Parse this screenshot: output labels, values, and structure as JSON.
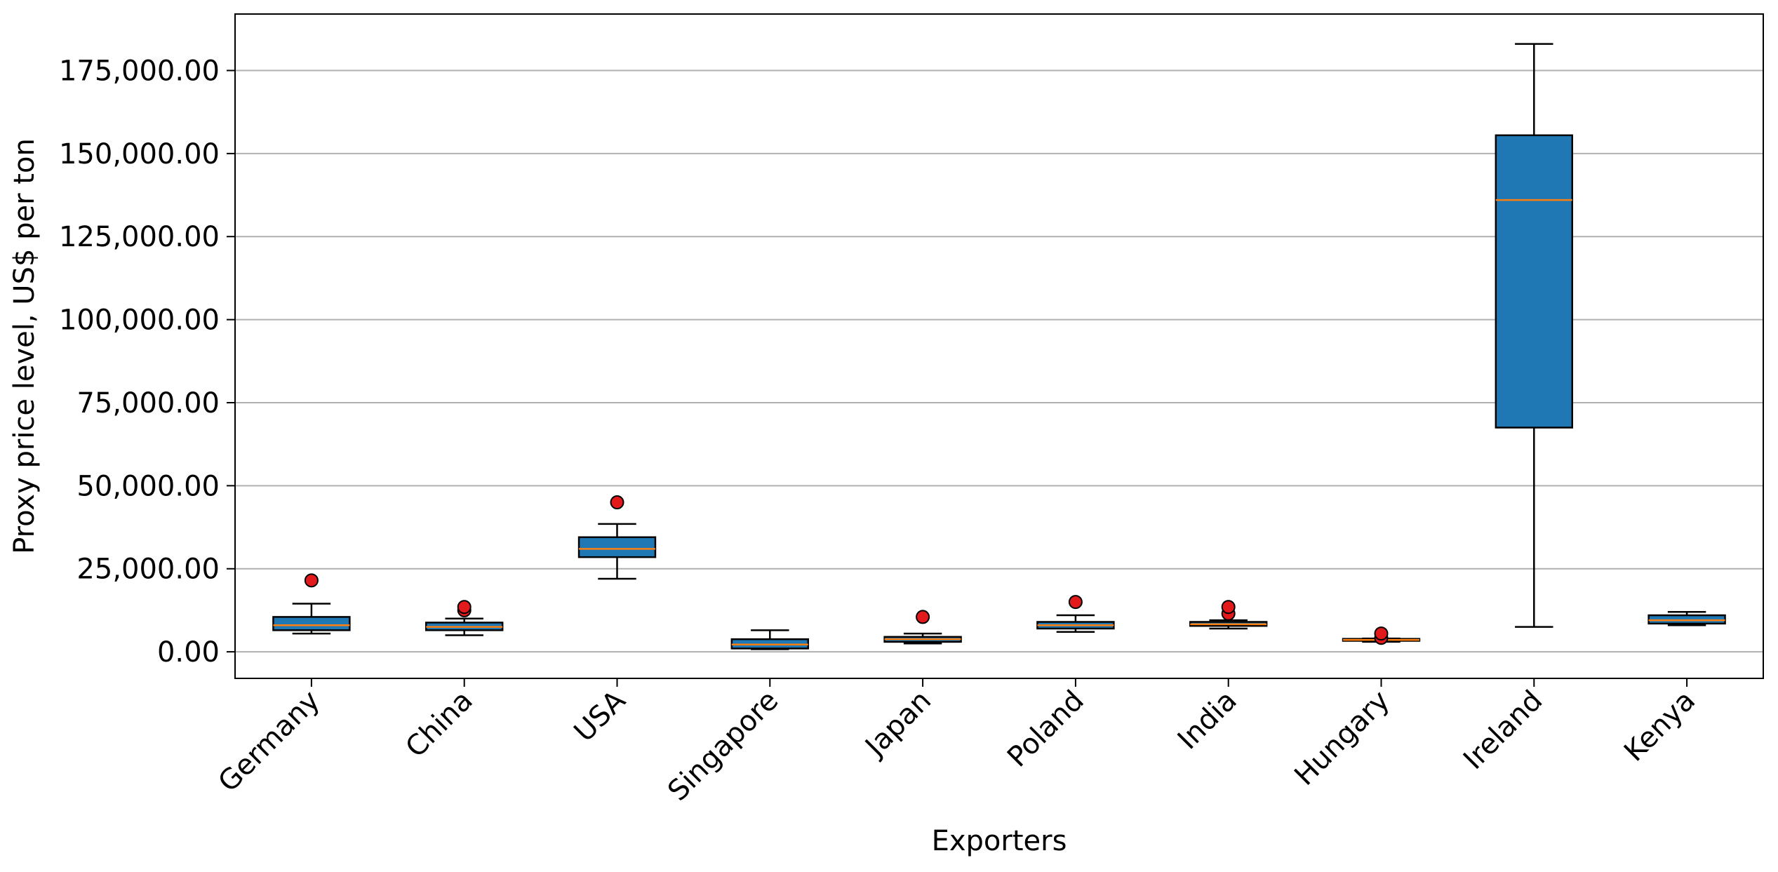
{
  "chart_data": {
    "type": "box",
    "title": "",
    "xlabel": "Exporters",
    "ylabel": "Proxy price level, US$ per ton",
    "ylim": [
      -8000,
      192000
    ],
    "yticks": [
      0,
      25000,
      50000,
      75000,
      100000,
      125000,
      150000,
      175000
    ],
    "ytick_labels": [
      "0.00",
      "25,000.00",
      "50,000.00",
      "75,000.00",
      "100,000.00",
      "125,000.00",
      "150,000.00",
      "175,000.00"
    ],
    "grid": "horizontal",
    "colors": {
      "box_fill": "#1f77b4",
      "median": "#ff7f0e",
      "outlier": "#e31a1c",
      "grid": "#b0b0b0"
    },
    "categories": [
      "Germany",
      "China",
      "USA",
      "Singapore",
      "Japan",
      "Poland",
      "India",
      "Hungary",
      "Ireland",
      "Kenya"
    ],
    "boxes": [
      {
        "label": "Germany",
        "whisker_low": 5500,
        "q1": 6500,
        "median": 8000,
        "q3": 10500,
        "whisker_high": 14500,
        "outliers": [
          21500
        ]
      },
      {
        "label": "China",
        "whisker_low": 5000,
        "q1": 6500,
        "median": 7500,
        "q3": 8800,
        "whisker_high": 10000,
        "outliers": [
          12500,
          13500
        ]
      },
      {
        "label": "USA",
        "whisker_low": 22000,
        "q1": 28500,
        "median": 31000,
        "q3": 34500,
        "whisker_high": 38500,
        "outliers": [
          45000
        ]
      },
      {
        "label": "Singapore",
        "whisker_low": 800,
        "q1": 1000,
        "median": 2200,
        "q3": 3800,
        "whisker_high": 6500,
        "outliers": []
      },
      {
        "label": "Japan",
        "whisker_low": 2500,
        "q1": 3000,
        "median": 3800,
        "q3": 4500,
        "whisker_high": 5500,
        "outliers": [
          10500
        ]
      },
      {
        "label": "Poland",
        "whisker_low": 6000,
        "q1": 7000,
        "median": 8000,
        "q3": 9000,
        "whisker_high": 11000,
        "outliers": [
          15000
        ]
      },
      {
        "label": "India",
        "whisker_low": 7000,
        "q1": 7800,
        "median": 8300,
        "q3": 9000,
        "whisker_high": 9500,
        "outliers": [
          11500,
          13500
        ]
      },
      {
        "label": "Hungary",
        "whisker_low": 3000,
        "q1": 3300,
        "median": 3600,
        "q3": 3900,
        "whisker_high": 4000,
        "outliers": [
          4200,
          5500
        ]
      },
      {
        "label": "Ireland",
        "whisker_low": 7500,
        "q1": 67500,
        "median": 136000,
        "q3": 155500,
        "whisker_high": 183000,
        "outliers": []
      },
      {
        "label": "Kenya",
        "whisker_low": 8000,
        "q1": 8500,
        "median": 9500,
        "q3": 11000,
        "whisker_high": 12000,
        "outliers": []
      }
    ]
  }
}
